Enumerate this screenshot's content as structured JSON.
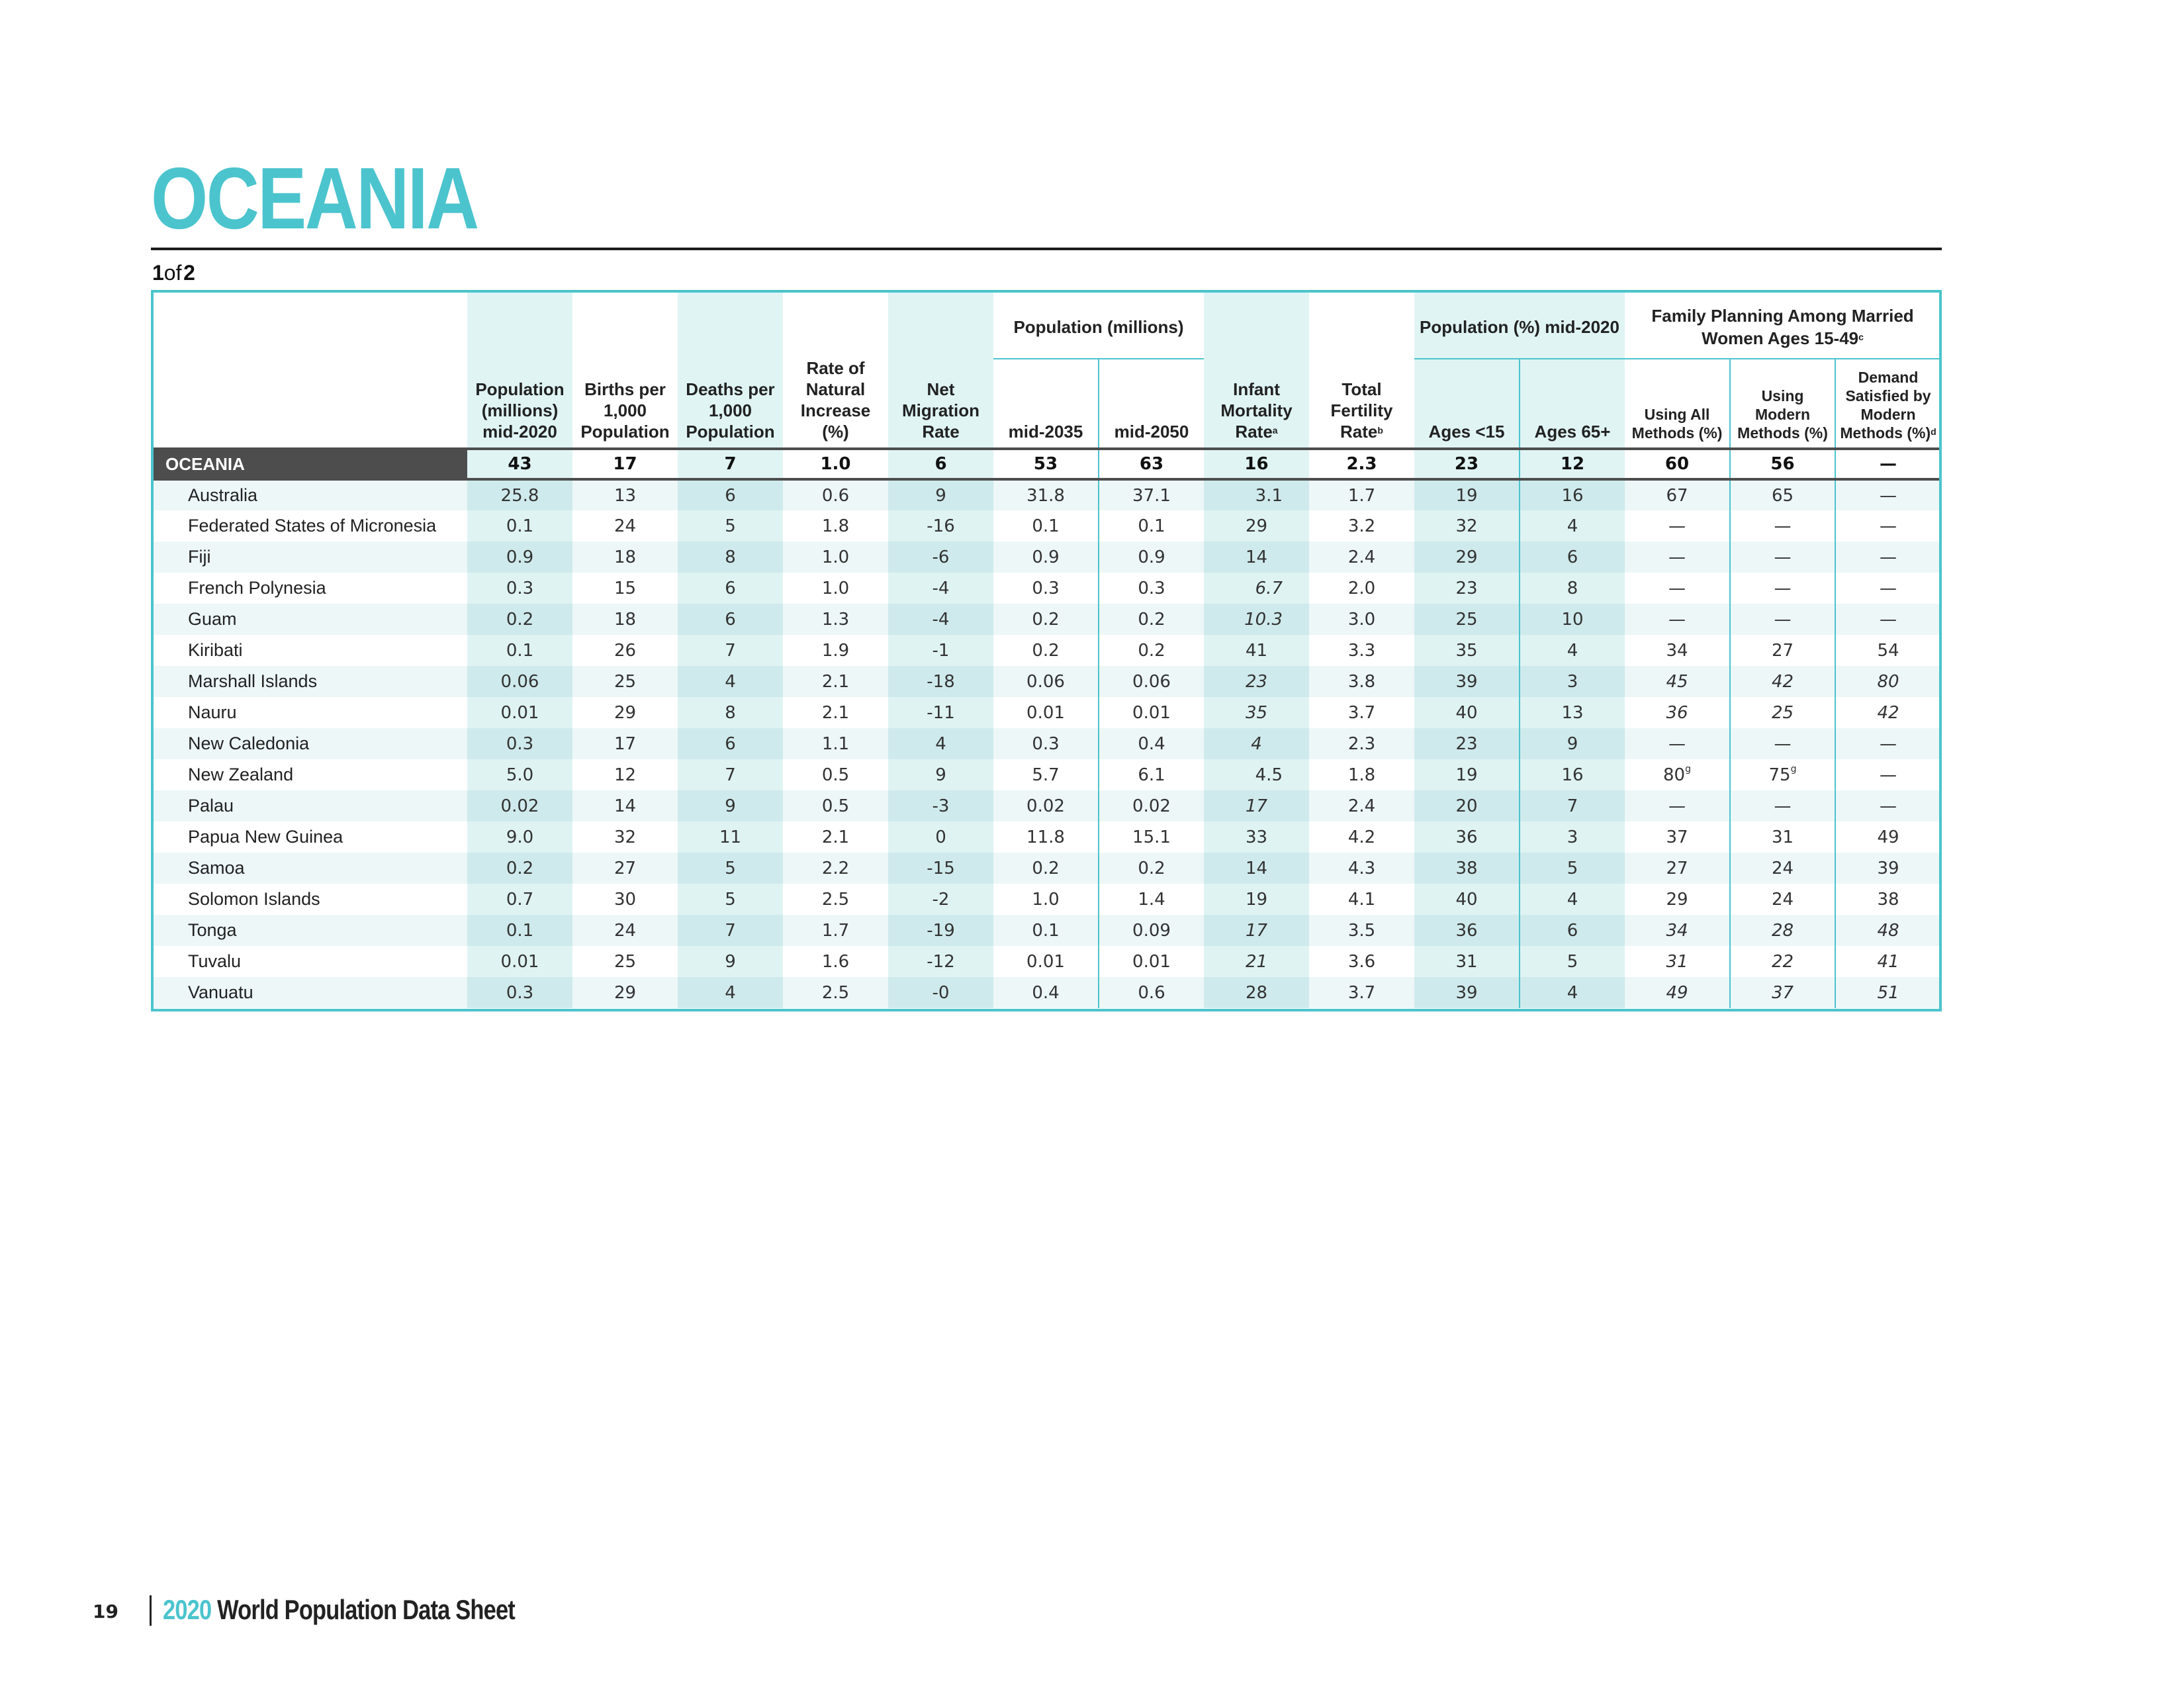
{
  "title": "OCEANIA",
  "page_indicator": {
    "current": "1",
    "of": "of",
    "total": "2"
  },
  "headers": {
    "group_population": "Population (millions)",
    "group_pop_pct": "Population (%) mid-2020",
    "group_family": "Family Planning Among Married Women Ages 15-49",
    "group_family_note": "c",
    "pop_mid2020": "Population (millions) mid-2020",
    "births": "Births per 1,000 Population",
    "deaths": "Deaths per 1,000 Population",
    "rni": "Rate of Natural Increase (%)",
    "migration": "Net Migration Rate",
    "mid2035": "mid-2035",
    "mid2050": "mid-2050",
    "imr": "Infant Mortality Rate",
    "imr_note": "a",
    "tfr": "Total Fertility Rate",
    "tfr_note": "b",
    "ages_lt15": "Ages <15",
    "ages_65": "Ages 65+",
    "using_all": "Using All Methods (%)",
    "using_modern": "Using Modern Methods (%)",
    "demand": "Demand Satisfied by Modern Methods (%)",
    "demand_note": "d"
  },
  "region": {
    "name": "OCEANIA",
    "values": [
      "43",
      "17",
      "7",
      "1.0",
      "6",
      "53",
      "63",
      "16",
      "2.3",
      "23",
      "12",
      "60",
      "56",
      "—"
    ]
  },
  "rows": [
    {
      "name": "Australia",
      "values": [
        "25.8",
        "13",
        "6",
        "0.6",
        "9",
        "31.8",
        "37.1",
        "3.1",
        "1.7",
        "19",
        "16",
        "67",
        "65",
        "—"
      ]
    },
    {
      "name": "Federated States of Micronesia",
      "values": [
        "0.1",
        "24",
        "5",
        "1.8",
        "-16",
        "0.1",
        "0.1",
        "29",
        "3.2",
        "32",
        "4",
        "—",
        "—",
        "—"
      ]
    },
    {
      "name": "Fiji",
      "values": [
        "0.9",
        "18",
        "8",
        "1.0",
        "-6",
        "0.9",
        "0.9",
        "14",
        "2.4",
        "29",
        "6",
        "—",
        "—",
        "—"
      ]
    },
    {
      "name": "French Polynesia",
      "values": [
        "0.3",
        "15",
        "6",
        "1.0",
        "-4",
        "0.3",
        "0.3",
        "6.7",
        "2.0",
        "23",
        "8",
        "—",
        "—",
        "—"
      ]
    },
    {
      "name": "Guam",
      "values": [
        "0.2",
        "18",
        "6",
        "1.3",
        "-4",
        "0.2",
        "0.2",
        "10.3",
        "3.0",
        "25",
        "10",
        "—",
        "—",
        "—"
      ]
    },
    {
      "name": "Kiribati",
      "values": [
        "0.1",
        "26",
        "7",
        "1.9",
        "-1",
        "0.2",
        "0.2",
        "41",
        "3.3",
        "35",
        "4",
        "34",
        "27",
        "54"
      ]
    },
    {
      "name": "Marshall Islands",
      "values": [
        "0.06",
        "25",
        "4",
        "2.1",
        "-18",
        "0.06",
        "0.06",
        "23",
        "3.8",
        "39",
        "3",
        "45",
        "42",
        "80"
      ]
    },
    {
      "name": "Nauru",
      "values": [
        "0.01",
        "29",
        "8",
        "2.1",
        "-11",
        "0.01",
        "0.01",
        "35",
        "3.7",
        "40",
        "13",
        "36",
        "25",
        "42"
      ]
    },
    {
      "name": "New Caledonia",
      "values": [
        "0.3",
        "17",
        "6",
        "1.1",
        "4",
        "0.3",
        "0.4",
        "4",
        "2.3",
        "23",
        "9",
        "—",
        "—",
        "—"
      ]
    },
    {
      "name": "New Zealand",
      "values": [
        "5.0",
        "12",
        "7",
        "0.5",
        "9",
        "5.7",
        "6.1",
        "4.5",
        "1.8",
        "19",
        "16",
        "80",
        "75",
        "—"
      ],
      "notes": {
        "11": "g",
        "12": "g"
      }
    },
    {
      "name": "Palau",
      "values": [
        "0.02",
        "14",
        "9",
        "0.5",
        "-3",
        "0.02",
        "0.02",
        "17",
        "2.4",
        "20",
        "7",
        "—",
        "—",
        "—"
      ]
    },
    {
      "name": "Papua New Guinea",
      "values": [
        "9.0",
        "32",
        "11",
        "2.1",
        "0",
        "11.8",
        "15.1",
        "33",
        "4.2",
        "36",
        "3",
        "37",
        "31",
        "49"
      ]
    },
    {
      "name": "Samoa",
      "values": [
        "0.2",
        "27",
        "5",
        "2.2",
        "-15",
        "0.2",
        "0.2",
        "14",
        "4.3",
        "38",
        "5",
        "27",
        "24",
        "39"
      ]
    },
    {
      "name": "Solomon Islands",
      "values": [
        "0.7",
        "30",
        "5",
        "2.5",
        "-2",
        "1.0",
        "1.4",
        "19",
        "4.1",
        "40",
        "4",
        "29",
        "24",
        "38"
      ]
    },
    {
      "name": "Tonga",
      "values": [
        "0.1",
        "24",
        "7",
        "1.7",
        "-19",
        "0.1",
        "0.09",
        "17",
        "3.5",
        "36",
        "6",
        "34",
        "28",
        "48"
      ]
    },
    {
      "name": "Tuvalu",
      "values": [
        "0.01",
        "25",
        "9",
        "1.6",
        "-12",
        "0.01",
        "0.01",
        "21",
        "3.6",
        "31",
        "5",
        "31",
        "22",
        "41"
      ]
    },
    {
      "name": "Vanuatu",
      "values": [
        "0.3",
        "29",
        "4",
        "2.5",
        "-0",
        "0.4",
        "0.6",
        "28",
        "3.7",
        "39",
        "4",
        "49",
        "37",
        "51"
      ]
    }
  ],
  "footer": {
    "page_number": "19",
    "year": "2020",
    "publication": "World Population Data Sheet"
  }
}
